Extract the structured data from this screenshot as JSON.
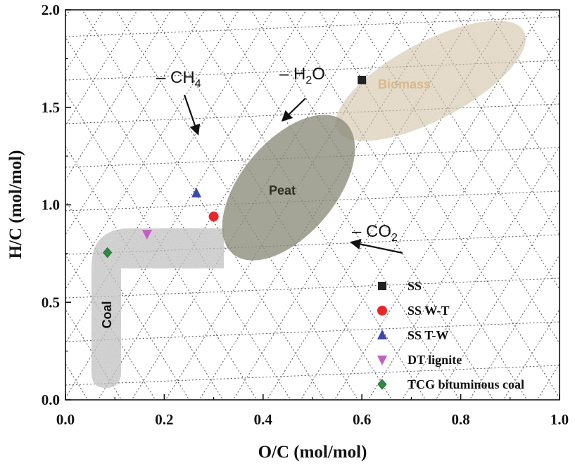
{
  "chart_data": {
    "type": "scatter",
    "title": "",
    "xlabel": "O/C (mol/mol)",
    "ylabel": "H/C (mol/mol)",
    "xlim": [
      0.0,
      1.0
    ],
    "ylim": [
      0.0,
      2.0
    ],
    "xticks": [
      "0.0",
      "0.2",
      "0.4",
      "0.6",
      "0.8",
      "1.0"
    ],
    "yticks": [
      "0.0",
      "0.5",
      "1.0",
      "1.5",
      "2.0"
    ],
    "grid": "dotted diagonal mesh",
    "legend_position": "bottom-right",
    "series": [
      {
        "name": "SS",
        "marker": "square",
        "color": "#222222",
        "x": [
          0.6
        ],
        "y": [
          1.64
        ]
      },
      {
        "name": "SS W-T",
        "marker": "circle",
        "color": "#e82626",
        "x": [
          0.3
        ],
        "y": [
          0.94
        ]
      },
      {
        "name": "SS T-W",
        "marker": "triangle-up",
        "color": "#3a47b3",
        "x": [
          0.265
        ],
        "y": [
          1.06
        ]
      },
      {
        "name": "DT lignite",
        "marker": "triangle-down",
        "color": "#c35fc3",
        "x": [
          0.165
        ],
        "y": [
          0.85
        ]
      },
      {
        "name": "TCG bituminous coal",
        "marker": "diamond",
        "color": "#2d8a3e",
        "x": [
          0.085
        ],
        "y": [
          0.755
        ]
      }
    ],
    "regions": [
      {
        "name": "Biomass",
        "color": "#c8a777"
      },
      {
        "name": "Peat",
        "color": "#4d4d3d"
      },
      {
        "name": "Coal",
        "color": "#333333"
      }
    ],
    "annotations": [
      {
        "text": "– CH",
        "sub": "4"
      },
      {
        "text": "– H",
        "sub": "2",
        "suffix": "O"
      },
      {
        "text": "– CO",
        "sub": "2"
      }
    ]
  }
}
